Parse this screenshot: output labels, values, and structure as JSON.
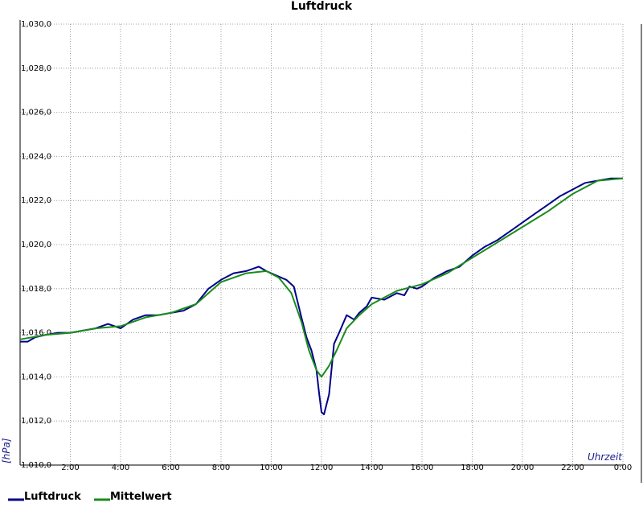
{
  "chart_data": {
    "type": "line",
    "title": "Luftdruck",
    "xlabel": "Uhrzeit",
    "ylabel": "[hPa]",
    "xlim": [
      0,
      24
    ],
    "ylim": [
      1010.0,
      1030.0
    ],
    "x_tick_labels": [
      "2:00",
      "4:00",
      "6:00",
      "8:00",
      "10:00",
      "12:00",
      "14:00",
      "16:00",
      "18:00",
      "20:00",
      "22:00",
      "0:00"
    ],
    "y_tick_labels": [
      "1,010,0",
      "1,012,0",
      "1,014,0",
      "1,016,0",
      "1,018,0",
      "1,020,0",
      "1,022,0",
      "1,024,0",
      "1,026,0",
      "1,028,0",
      "1,030,0"
    ],
    "grid": true,
    "legend_position": "bottom-left",
    "colors": {
      "Luftdruck": "#00008b",
      "Mittelwert": "#1a8c1a"
    },
    "series": [
      {
        "name": "Luftdruck",
        "x": [
          0.0,
          0.3,
          0.6,
          1.0,
          1.5,
          2.0,
          2.5,
          3.0,
          3.5,
          4.0,
          4.5,
          5.0,
          5.5,
          6.0,
          6.5,
          7.0,
          7.5,
          8.0,
          8.5,
          9.0,
          9.5,
          9.8,
          10.2,
          10.6,
          10.9,
          11.2,
          11.4,
          11.6,
          11.8,
          11.9,
          12.0,
          12.1,
          12.3,
          12.5,
          12.7,
          13.0,
          13.3,
          13.5,
          13.8,
          14.0,
          14.5,
          15.0,
          15.3,
          15.5,
          15.8,
          16.0,
          16.5,
          17.0,
          17.5,
          18.0,
          18.5,
          19.0,
          19.5,
          20.0,
          20.5,
          21.0,
          21.5,
          22.0,
          22.5,
          23.0,
          23.5,
          24.0
        ],
        "y": [
          1015.6,
          1015.6,
          1015.8,
          1015.9,
          1016.0,
          1016.0,
          1016.1,
          1016.2,
          1016.4,
          1016.2,
          1016.6,
          1016.8,
          1016.8,
          1016.9,
          1017.0,
          1017.3,
          1018.0,
          1018.4,
          1018.7,
          1018.8,
          1019.0,
          1018.8,
          1018.6,
          1018.4,
          1018.1,
          1016.7,
          1015.8,
          1015.2,
          1014.3,
          1013.3,
          1012.4,
          1012.3,
          1013.2,
          1015.5,
          1016.0,
          1016.8,
          1016.6,
          1016.9,
          1017.2,
          1017.6,
          1017.5,
          1017.8,
          1017.7,
          1018.1,
          1018.0,
          1018.1,
          1018.5,
          1018.8,
          1019.0,
          1019.5,
          1019.9,
          1020.2,
          1020.6,
          1021.0,
          1021.4,
          1021.8,
          1022.2,
          1022.5,
          1022.8,
          1022.9,
          1023.0,
          1023.0
        ]
      },
      {
        "name": "Mittelwert",
        "x": [
          0.0,
          1.0,
          2.0,
          3.0,
          4.0,
          5.0,
          6.0,
          7.0,
          7.5,
          8.0,
          9.0,
          9.8,
          10.3,
          10.8,
          11.2,
          11.5,
          11.8,
          12.0,
          12.3,
          12.6,
          13.0,
          13.5,
          14.0,
          14.5,
          15.0,
          16.0,
          17.0,
          18.0,
          19.0,
          20.0,
          21.0,
          22.0,
          23.0,
          24.0
        ],
        "y": [
          1015.7,
          1015.9,
          1016.0,
          1016.2,
          1016.3,
          1016.7,
          1016.9,
          1017.3,
          1017.8,
          1018.3,
          1018.7,
          1018.8,
          1018.5,
          1017.8,
          1016.5,
          1015.2,
          1014.3,
          1014.0,
          1014.5,
          1015.2,
          1016.2,
          1016.8,
          1017.3,
          1017.6,
          1017.9,
          1018.2,
          1018.7,
          1019.4,
          1020.1,
          1020.8,
          1021.5,
          1022.3,
          1022.9,
          1023.0
        ]
      }
    ]
  }
}
